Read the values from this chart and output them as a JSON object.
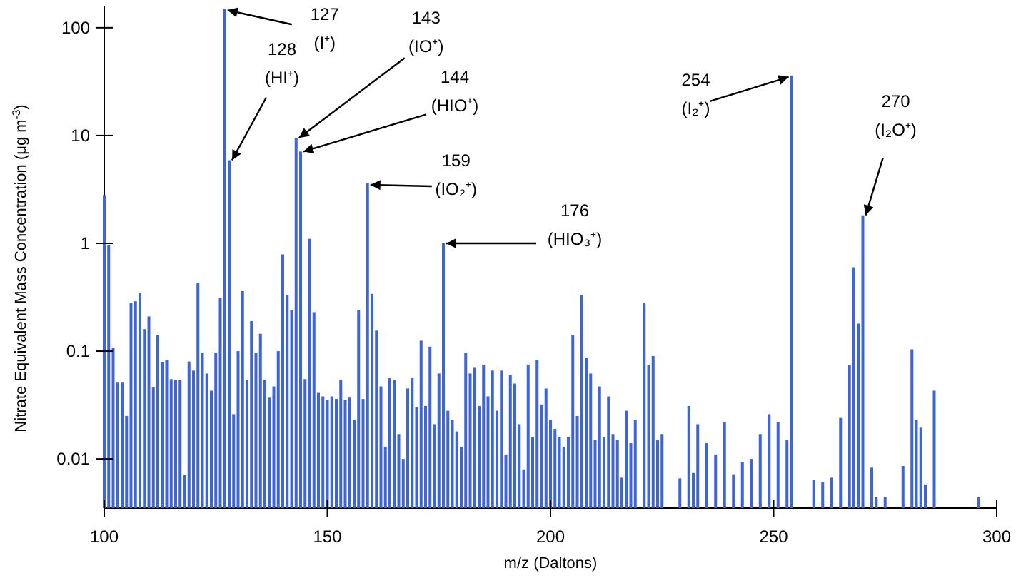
{
  "chart_data": {
    "type": "bar",
    "xlabel": "m/z (Daltons)",
    "ylabel": "Nitrate Equivalent Mass Concentration (μg m$^{-3}$)",
    "x": [
      100,
      101,
      102,
      103,
      104,
      105,
      106,
      107,
      108,
      109,
      110,
      111,
      112,
      113,
      114,
      115,
      116,
      117,
      118,
      119,
      120,
      121,
      122,
      123,
      124,
      125,
      126,
      127,
      128,
      129,
      130,
      131,
      132,
      133,
      134,
      135,
      136,
      137,
      138,
      139,
      140,
      141,
      142,
      143,
      144,
      145,
      146,
      147,
      148,
      149,
      150,
      151,
      152,
      153,
      154,
      155,
      156,
      157,
      158,
      159,
      160,
      161,
      162,
      163,
      164,
      165,
      166,
      167,
      168,
      169,
      170,
      171,
      172,
      173,
      174,
      175,
      176,
      177,
      178,
      179,
      180,
      181,
      182,
      183,
      184,
      185,
      186,
      187,
      188,
      189,
      190,
      191,
      192,
      193,
      194,
      195,
      196,
      197,
      198,
      199,
      200,
      201,
      202,
      203,
      204,
      205,
      206,
      207,
      208,
      209,
      210,
      211,
      212,
      213,
      214,
      215,
      216,
      217,
      218,
      219,
      221,
      222,
      223,
      224,
      225,
      229,
      231,
      232,
      233,
      235,
      237,
      239,
      241,
      243,
      245,
      247,
      249,
      251,
      253,
      254,
      259,
      261,
      263,
      265,
      267,
      268,
      269,
      270,
      272,
      273,
      275,
      279,
      281,
      282,
      283,
      284,
      286,
      296
    ],
    "values": [
      2.8,
      0.97,
      0.107,
      0.051,
      0.051,
      0.025,
      0.28,
      0.29,
      0.35,
      0.16,
      0.21,
      0.046,
      0.14,
      0.079,
      0.083,
      0.055,
      0.054,
      0.054,
      0.0071,
      0.08,
      0.066,
      0.43,
      0.097,
      0.062,
      0.043,
      0.097,
      0.31,
      150,
      5.9,
      0.026,
      0.1,
      0.36,
      0.054,
      0.19,
      0.097,
      0.145,
      0.054,
      0.037,
      0.047,
      0.1,
      0.79,
      0.33,
      0.24,
      9.5,
      7.1,
      0.055,
      1.1,
      0.23,
      0.041,
      0.038,
      0.035,
      0.038,
      0.036,
      0.054,
      0.035,
      0.037,
      0.023,
      0.24,
      0.036,
      3.6,
      0.34,
      0.155,
      0.047,
      0.013,
      0.056,
      0.054,
      0.017,
      0.01,
      0.045,
      0.056,
      0.03,
      0.125,
      0.031,
      0.11,
      0.021,
      0.062,
      1.0,
      0.028,
      0.023,
      0.018,
      0.013,
      0.097,
      0.062,
      0.07,
      0.031,
      0.075,
      0.038,
      0.066,
      0.028,
      0.066,
      0.011,
      0.06,
      0.05,
      0.021,
      0.008,
      0.075,
      0.016,
      0.083,
      0.032,
      0.045,
      0.023,
      0.019,
      0.016,
      0.013,
      0.016,
      0.14,
      0.025,
      0.33,
      0.087,
      0.062,
      0.015,
      0.047,
      0.016,
      0.038,
      0.017,
      0.015,
      0.0067,
      0.028,
      0.014,
      0.023,
      0.28,
      0.075,
      0.09,
      0.015,
      0.017,
      0.0066,
      0.031,
      0.0074,
      0.021,
      0.014,
      0.011,
      0.022,
      0.0072,
      0.0094,
      0.01,
      0.017,
      0.026,
      0.022,
      0.015,
      36,
      0.0064,
      0.0061,
      0.0067,
      0.024,
      0.074,
      0.6,
      0.18,
      1.82,
      0.0083,
      0.0044,
      0.0044,
      0.0086,
      0.104,
      0.023,
      0.0195,
      0.0058,
      0.043,
      0.0044
    ],
    "color": "#3d64d8",
    "log": true,
    "xlim": [
      100,
      300
    ],
    "xticks": [
      100,
      150,
      200,
      250,
      300
    ],
    "ylim": [
      0.0035,
      160
    ],
    "yticks": [
      0.01,
      0.1,
      1,
      10,
      100
    ],
    "annotations": [
      {
        "text": "127\n(I⁺)",
        "x": 127,
        "y": 150
      },
      {
        "text": "128\n(HI⁺)",
        "x": 128,
        "y": 5.9
      },
      {
        "text": "143\n(IO⁺)",
        "x": 143,
        "y": 9.5
      },
      {
        "text": "144\n(HIO⁺)",
        "x": 144,
        "y": 7.1
      },
      {
        "text": "159\n(IO₂⁺)",
        "x": 159,
        "y": 3.6
      },
      {
        "text": "176\n(HIO₃⁺)",
        "x": 176,
        "y": 1.0
      },
      {
        "text": "254\n(I₂⁺)",
        "x": 254,
        "y": 36
      },
      {
        "text": "270\n(I₂O⁺)",
        "x": 270,
        "y": 1.82
      }
    ]
  }
}
